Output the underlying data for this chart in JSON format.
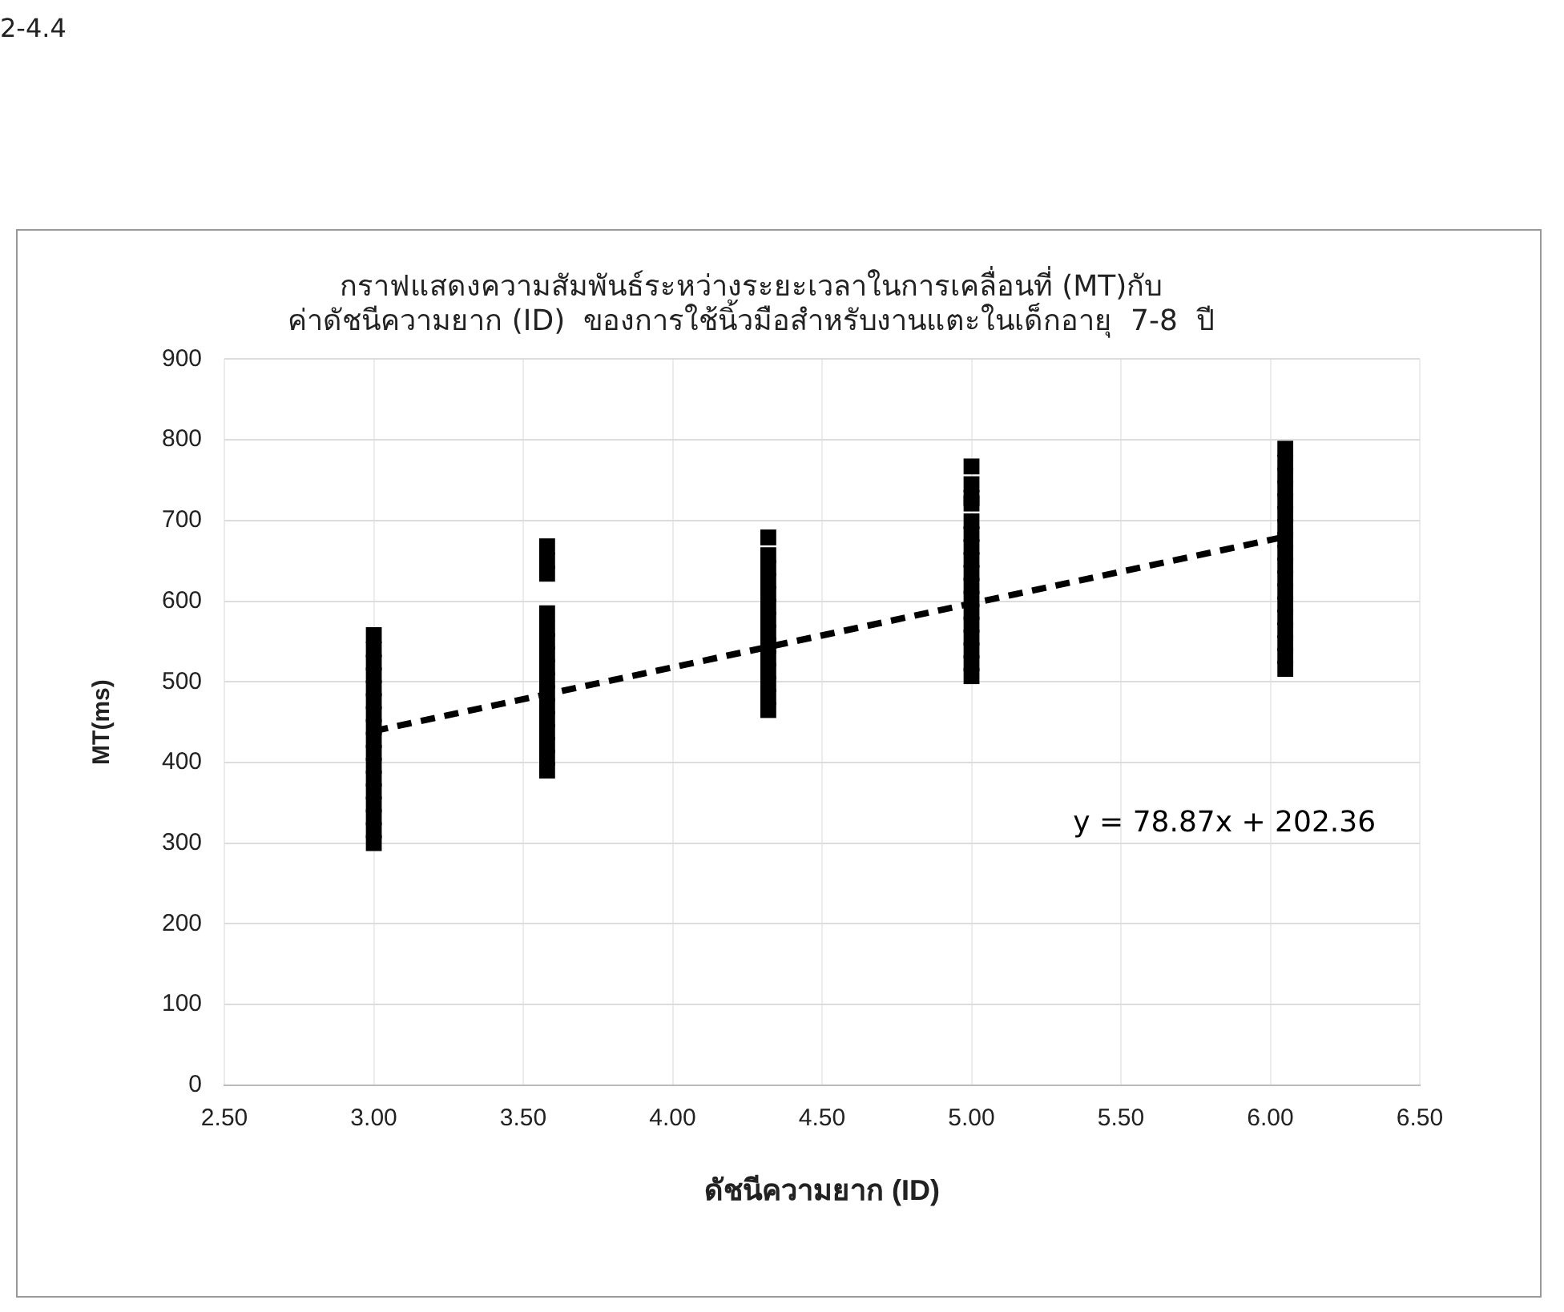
{
  "chart_data": {
    "type": "scatter",
    "title": "กราฟแสดงความสัมพันธ์ระหว่างระยะเวลาในการเคลื่อนที่ (MT)กับ\nค่าดัชนีความยาก (ID)  ของการใช้นิ้วมือสำหรับงานแตะในเด็กอายุ  7-8  ปี",
    "xlabel": "ดัชนีความยาก (ID)",
    "ylabel": "MT(ms)",
    "annotations": [
      "2-4.4",
      "y = 78.87x + 202.36"
    ],
    "series": [
      {
        "color": "#000000",
        "marker": "square",
        "x": [
          3.0,
          3.0,
          3.0,
          3.0,
          3.0,
          3.0,
          3.0,
          3.0,
          3.0,
          3.0,
          3.0,
          3.0,
          3.0,
          3.0,
          3.0,
          3.0,
          3.0,
          3.58,
          3.58,
          3.58,
          3.58,
          3.58,
          3.58,
          3.58,
          3.58,
          3.58,
          3.58,
          3.58,
          3.58,
          3.58,
          3.58,
          3.58,
          3.58,
          4.32,
          4.32,
          4.32,
          4.32,
          4.32,
          4.32,
          4.32,
          4.32,
          4.32,
          4.32,
          4.32,
          4.32,
          4.32,
          4.32,
          5.0,
          5.0,
          5.0,
          5.0,
          5.0,
          5.0,
          5.0,
          5.0,
          5.0,
          5.0,
          5.0,
          5.0,
          5.0,
          5.0,
          5.0,
          5.0,
          5.0,
          6.05,
          6.05,
          6.05,
          6.05,
          6.05,
          6.05,
          6.05,
          6.05,
          6.05,
          6.05,
          6.05,
          6.05,
          6.05,
          6.05,
          6.05,
          6.05,
          6.05,
          6.05
        ],
        "values": [
          300,
          316,
          332,
          348,
          364,
          380,
          396,
          412,
          428,
          444,
          460,
          476,
          492,
          508,
          524,
          540,
          558,
          390,
          406,
          422,
          438,
          454,
          470,
          486,
          502,
          518,
          534,
          550,
          566,
          585,
          634,
          650,
          668,
          465,
          481,
          497,
          513,
          529,
          545,
          561,
          577,
          593,
          609,
          625,
          641,
          657,
          679,
          507,
          523,
          539,
          555,
          571,
          587,
          603,
          619,
          635,
          651,
          667,
          683,
          699,
          721,
          728,
          745,
          767,
          516,
          532,
          548,
          564,
          580,
          596,
          612,
          628,
          644,
          660,
          676,
          692,
          708,
          724,
          740,
          756,
          772,
          789
        ]
      },
      {
        "type": "line",
        "color": "#000000",
        "line_style": "dashed",
        "marker": "none",
        "x": [
          3.0,
          6.05
        ],
        "values": [
          439,
          680
        ]
      }
    ],
    "xlim": [
      2.5,
      6.5
    ],
    "xticks": [
      {
        "value": 2.5,
        "label": "2.50"
      },
      {
        "value": 3,
        "label": "3.00"
      },
      {
        "value": 3.5,
        "label": "3.50"
      },
      {
        "value": 4,
        "label": "4.00"
      },
      {
        "value": 4.5,
        "label": "4.50"
      },
      {
        "value": 5,
        "label": "5.00"
      },
      {
        "value": 5.5,
        "label": "5.50"
      },
      {
        "value": 6,
        "label": "6.00"
      },
      {
        "value": 6.5,
        "label": "6.50"
      }
    ],
    "ylim": [
      0,
      900
    ],
    "yticks": [
      0,
      100,
      200,
      300,
      400,
      500,
      600,
      700,
      800,
      900
    ],
    "grid": true,
    "legend": false
  }
}
